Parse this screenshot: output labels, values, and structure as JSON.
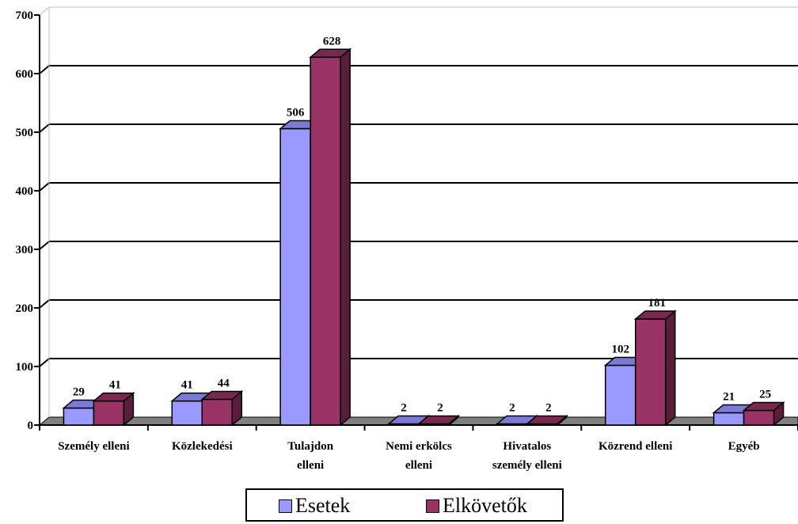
{
  "chart_data": {
    "type": "bar",
    "categories": [
      "Személy elleni",
      "Közlekedési",
      "Tulajdon elleni",
      "Nemi erkölcs elleni",
      "Hivatalos személy elleni",
      "Közrend elleni",
      "Egyéb"
    ],
    "category_lines": [
      [
        "Személy elleni"
      ],
      [
        "Közlekedési"
      ],
      [
        "Tulajdon",
        "elleni"
      ],
      [
        "Nemi erkölcs",
        "elleni"
      ],
      [
        "Hivatalos",
        "személy elleni"
      ],
      [
        "Közrend elleni"
      ],
      [
        "Egyéb"
      ]
    ],
    "series": [
      {
        "name": "Esetek",
        "values": [
          29,
          41,
          506,
          2,
          2,
          102,
          21
        ],
        "color": "#9999ff",
        "side_color": "#5f5fb8",
        "top_color": "#7b7bd6"
      },
      {
        "name": "Elkövetők",
        "values": [
          41,
          44,
          628,
          2,
          2,
          181,
          25
        ],
        "color": "#993366",
        "side_color": "#5a1e3c",
        "top_color": "#7a2850"
      }
    ],
    "ylim": [
      0,
      700
    ],
    "yticks": [
      0,
      100,
      200,
      300,
      400,
      500,
      600,
      700
    ],
    "grid": true,
    "legend_position": "bottom",
    "three_d": true
  }
}
